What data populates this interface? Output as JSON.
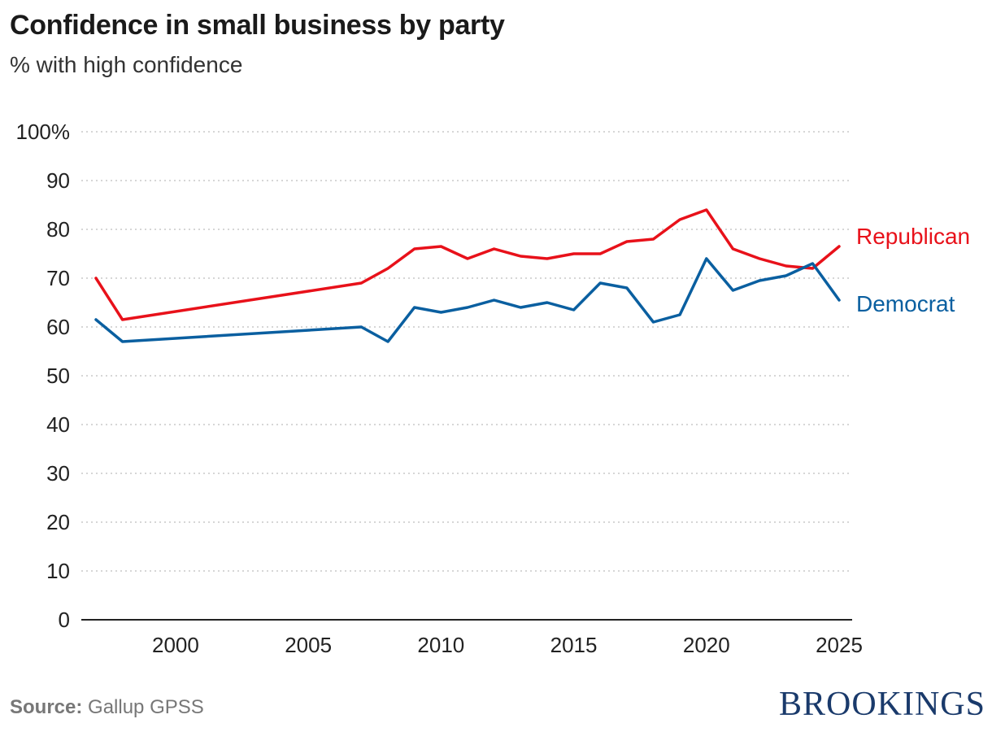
{
  "header": {
    "title": "Confidence in small business by party",
    "subtitle": "% with high confidence"
  },
  "footer": {
    "source_label": "Source:",
    "source_text": "Gallup GPSS",
    "brand": "BROOKINGS"
  },
  "chart_data": {
    "type": "line",
    "title": "Confidence in small business by party",
    "subtitle": "% with high confidence",
    "xlabel": "",
    "ylabel": "",
    "xlim": [
      1997,
      2025
    ],
    "ylim": [
      0,
      100
    ],
    "x_ticks": [
      2000,
      2005,
      2010,
      2015,
      2020,
      2025
    ],
    "y_ticks": [
      0,
      10,
      20,
      30,
      40,
      50,
      60,
      70,
      80,
      90,
      100
    ],
    "y_tick_labels": [
      "0",
      "10",
      "20",
      "30",
      "40",
      "50",
      "60",
      "70",
      "80",
      "90",
      "100%"
    ],
    "grid": "horizontal dotted",
    "series": [
      {
        "name": "Republican",
        "color": "#e8111a",
        "x": [
          1997,
          1998,
          2007,
          2008,
          2009,
          2010,
          2011,
          2012,
          2013,
          2014,
          2015,
          2016,
          2017,
          2018,
          2019,
          2020,
          2021,
          2022,
          2023,
          2024,
          2025
        ],
        "y": [
          70,
          61.5,
          69,
          72,
          76,
          76.5,
          74,
          76,
          74.5,
          74,
          75,
          75,
          77.5,
          78,
          82,
          84,
          76,
          74,
          72.5,
          72,
          76.5
        ]
      },
      {
        "name": "Democrat",
        "color": "#0a5fa0",
        "x": [
          1997,
          1998,
          2007,
          2008,
          2009,
          2010,
          2011,
          2012,
          2013,
          2014,
          2015,
          2016,
          2017,
          2018,
          2019,
          2020,
          2021,
          2022,
          2023,
          2024,
          2025
        ],
        "y": [
          61.5,
          57,
          60,
          57,
          64,
          63,
          64,
          65.5,
          64,
          65,
          63.5,
          69,
          68,
          61,
          62.5,
          74,
          67.5,
          69.5,
          70.5,
          73,
          65.5
        ]
      }
    ]
  }
}
